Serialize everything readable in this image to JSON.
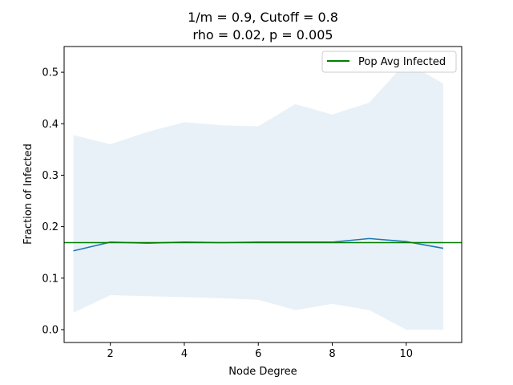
{
  "chart_data": {
    "type": "line",
    "title_lines": [
      "1/m = 0.9, Cutoff = 0.8",
      "rho = 0.02, p = 0.005"
    ],
    "xlabel": "Node Degree",
    "ylabel": "Fraction of Infected",
    "xlim": [
      0.75,
      11.5
    ],
    "ylim": [
      -0.025,
      0.55
    ],
    "xticks": [
      2,
      4,
      6,
      8,
      10
    ],
    "yticks": [
      0.0,
      0.1,
      0.2,
      0.3,
      0.4,
      0.5
    ],
    "ytick_labels": [
      "0.0",
      "0.1",
      "0.2",
      "0.3",
      "0.4",
      "0.5"
    ],
    "grid": false,
    "legend_position": "top-right",
    "x": [
      1,
      2,
      3,
      4,
      5,
      6,
      7,
      8,
      9,
      10,
      11
    ],
    "series": [
      {
        "values": [
          0.153,
          0.17,
          0.168,
          0.17,
          0.169,
          0.17,
          0.17,
          0.17,
          0.177,
          0.171,
          0.158
        ],
        "color": "#1f77b4"
      }
    ],
    "band": {
      "lower": [
        0.033,
        0.067,
        0.065,
        0.063,
        0.061,
        0.058,
        0.038,
        0.05,
        0.038,
        0.0,
        0.0
      ],
      "upper": [
        0.378,
        0.36,
        0.384,
        0.403,
        0.397,
        0.395,
        0.438,
        0.418,
        0.441,
        0.52,
        0.478
      ],
      "color": "#1f77b4",
      "opacity": 0.1
    },
    "reference_line": {
      "name": "Pop Avg Infected",
      "y": 0.169,
      "color": "#008000"
    }
  }
}
